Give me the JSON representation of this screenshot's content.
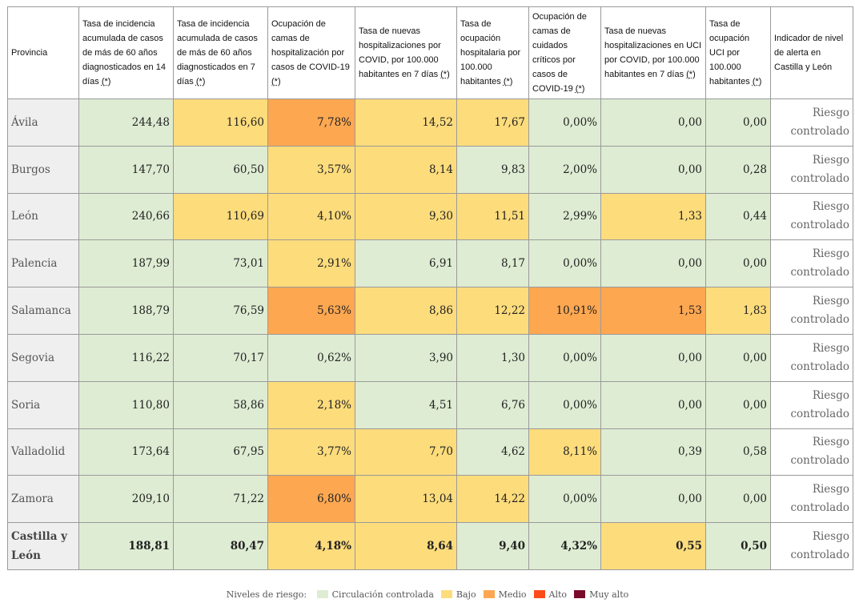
{
  "headers": [
    {
      "text": "Provincia",
      "star": ""
    },
    {
      "text": "Tasa de incidencia acumulada de casos de más de 60 años diagnosticados en 14 días ",
      "star": "(*)"
    },
    {
      "text": "Tasa de incidencia acumulada de casos de más de 60 años diagnosticados en 7 días ",
      "star": "(*)"
    },
    {
      "text": "Ocupación de camas de hospitalización por casos de COVID-19 ",
      "star": "(*)"
    },
    {
      "text": "Tasa de nuevas hospitalizaciones por COVID, por 100.000 habitantes en 7 días ",
      "star": "(*)"
    },
    {
      "text": "Tasa de ocupación hospitalaria por 100.000 habitantes ",
      "star": "(*)"
    },
    {
      "text": "Ocupación de camas de cuidados críticos por casos de COVID-19 ",
      "star": "(*)"
    },
    {
      "text": "Tasa de nuevas hospitalizaciones en UCI por COVID, por 100.000 habitantes en 7 días ",
      "star": "(*)"
    },
    {
      "text": "Tasa de ocupación UCI por 100.000 habitantes ",
      "star": "(*)"
    },
    {
      "text": "Indicador de nivel de alerta en Castilla y León",
      "star": ""
    }
  ],
  "rows": [
    {
      "province": "Ávila",
      "values": [
        "244,48",
        "116,60",
        "7,78%",
        "14,52",
        "17,67",
        "0,00%",
        "0,00",
        "0,00"
      ],
      "levels": [
        "g",
        "y",
        "o",
        "y",
        "y",
        "g",
        "g",
        "g"
      ],
      "alert": [
        "Riesgo",
        "controlado"
      ]
    },
    {
      "province": "Burgos",
      "values": [
        "147,70",
        "60,50",
        "3,57%",
        "8,14",
        "9,83",
        "2,00%",
        "0,00",
        "0,28"
      ],
      "levels": [
        "g",
        "g",
        "y",
        "y",
        "g",
        "g",
        "g",
        "g"
      ],
      "alert": [
        "Riesgo",
        "controlado"
      ]
    },
    {
      "province": "León",
      "values": [
        "240,66",
        "110,69",
        "4,10%",
        "9,30",
        "11,51",
        "2,99%",
        "1,33",
        "0,44"
      ],
      "levels": [
        "g",
        "y",
        "y",
        "y",
        "y",
        "g",
        "y",
        "g"
      ],
      "alert": [
        "Riesgo",
        "controlado"
      ]
    },
    {
      "province": "Palencia",
      "values": [
        "187,99",
        "73,01",
        "2,91%",
        "6,91",
        "8,17",
        "0,00%",
        "0,00",
        "0,00"
      ],
      "levels": [
        "g",
        "g",
        "y",
        "g",
        "g",
        "g",
        "g",
        "g"
      ],
      "alert": [
        "Riesgo",
        "controlado"
      ]
    },
    {
      "province": "Salamanca",
      "values": [
        "188,79",
        "76,59",
        "5,63%",
        "8,86",
        "12,22",
        "10,91%",
        "1,53",
        "1,83"
      ],
      "levels": [
        "g",
        "g",
        "o",
        "y",
        "y",
        "o",
        "o",
        "y"
      ],
      "alert": [
        "Riesgo",
        "controlado"
      ]
    },
    {
      "province": "Segovia",
      "values": [
        "116,22",
        "70,17",
        "0,62%",
        "3,90",
        "1,30",
        "0,00%",
        "0,00",
        "0,00"
      ],
      "levels": [
        "g",
        "g",
        "g",
        "g",
        "g",
        "g",
        "g",
        "g"
      ],
      "alert": [
        "Riesgo",
        "controlado"
      ]
    },
    {
      "province": "Soria",
      "values": [
        "110,80",
        "58,86",
        "2,18%",
        "4,51",
        "6,76",
        "0,00%",
        "0,00",
        "0,00"
      ],
      "levels": [
        "g",
        "g",
        "y",
        "g",
        "g",
        "g",
        "g",
        "g"
      ],
      "alert": [
        "Riesgo",
        "controlado"
      ]
    },
    {
      "province": "Valladolid",
      "values": [
        "173,64",
        "67,95",
        "3,77%",
        "7,70",
        "4,62",
        "8,11%",
        "0,39",
        "0,58"
      ],
      "levels": [
        "g",
        "g",
        "y",
        "y",
        "g",
        "y",
        "g",
        "g"
      ],
      "alert": [
        "Riesgo",
        "controlado"
      ]
    },
    {
      "province": "Zamora",
      "values": [
        "209,10",
        "71,22",
        "6,80%",
        "13,04",
        "14,22",
        "0,00%",
        "0,00",
        "0,00"
      ],
      "levels": [
        "g",
        "g",
        "o",
        "y",
        "y",
        "g",
        "g",
        "g"
      ],
      "alert": [
        "Riesgo",
        "controlado"
      ]
    },
    {
      "province": "Castilla y León",
      "values": [
        "188,81",
        "80,47",
        "4,18%",
        "8,64",
        "9,40",
        "4,32%",
        "0,55",
        "0,50"
      ],
      "levels": [
        "g",
        "g",
        "y",
        "y",
        "g",
        "g",
        "y",
        "g"
      ],
      "alert": [
        "Riesgo",
        "controlado"
      ],
      "total": true
    }
  ],
  "legend": {
    "label": "Niveles de riesgo:",
    "items": [
      {
        "label": "Circulación controlada",
        "color": "#deecd3"
      },
      {
        "label": "Bajo",
        "color": "#fddc7c"
      },
      {
        "label": "Medio",
        "color": "#fda751"
      },
      {
        "label": "Alto",
        "color": "#fd4c18"
      },
      {
        "label": "Muy alto",
        "color": "#7b0a2a"
      }
    ]
  }
}
